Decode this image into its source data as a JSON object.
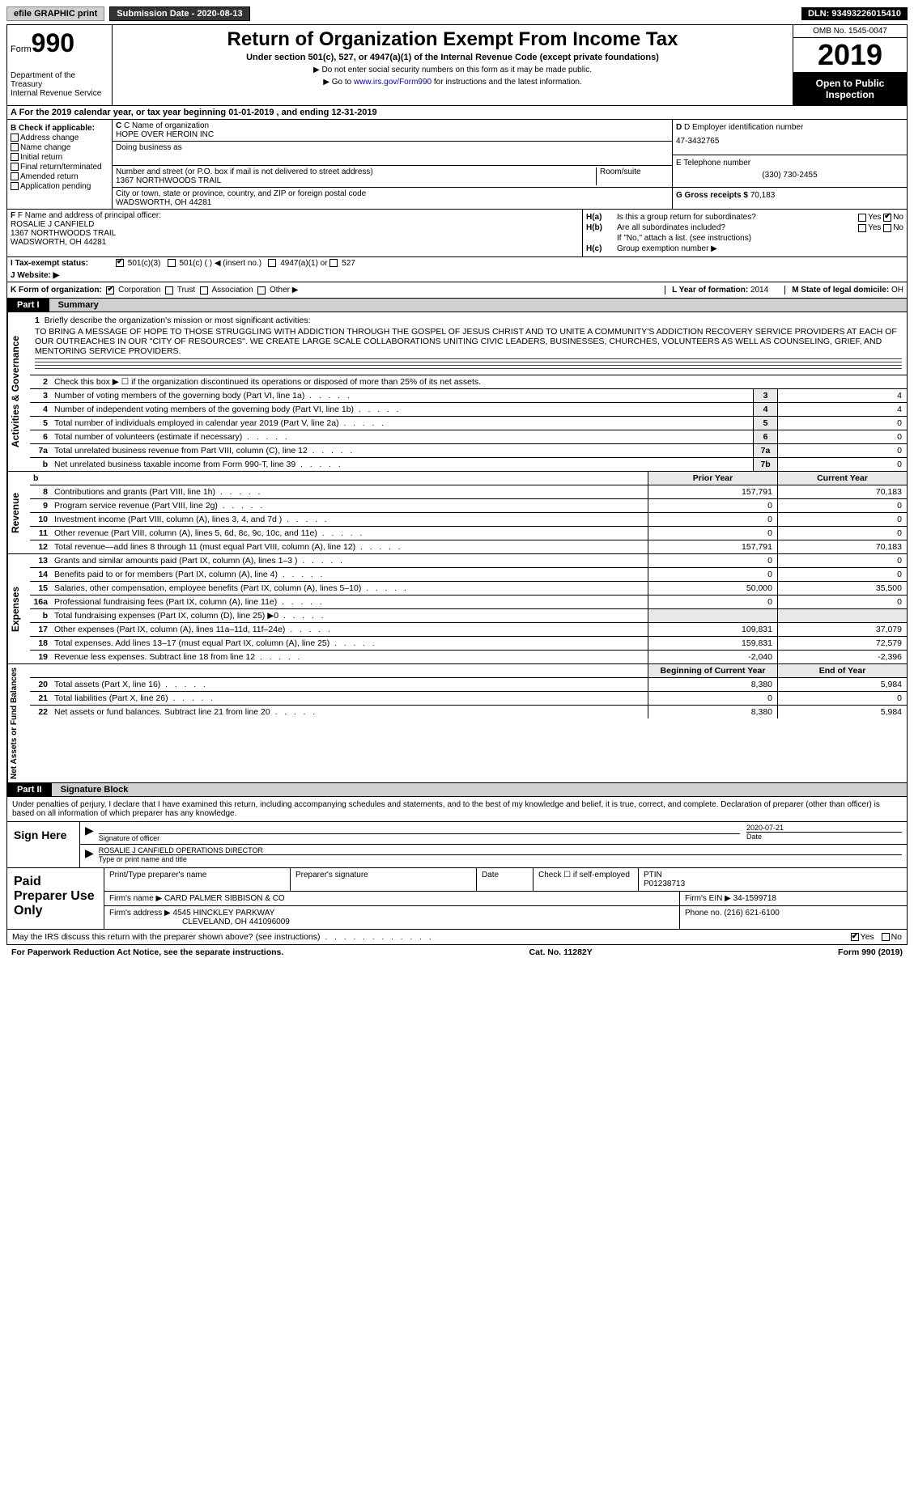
{
  "topbar": {
    "efile": "efile GRAPHIC print",
    "submission": "Submission Date - 2020-08-13",
    "dln": "DLN: 93493226015410"
  },
  "header": {
    "form_prefix": "Form",
    "form_num": "990",
    "dept": "Department of the Treasury\nInternal Revenue Service",
    "title": "Return of Organization Exempt From Income Tax",
    "subtitle": "Under section 501(c), 527, or 4947(a)(1) of the Internal Revenue Code (except private foundations)",
    "note1": "▶ Do not enter social security numbers on this form as it may be made public.",
    "note2_pre": "▶ Go to ",
    "note2_link": "www.irs.gov/Form990",
    "note2_post": " for instructions and the latest information.",
    "omb": "OMB No. 1545-0047",
    "year": "2019",
    "open": "Open to Public Inspection"
  },
  "row_a": "A For the 2019 calendar year, or tax year beginning 01-01-2019   , and ending 12-31-2019",
  "col_b": {
    "title": "B Check if applicable:",
    "items": [
      "Address change",
      "Name change",
      "Initial return",
      "Final return/terminated",
      "Amended return",
      "Application pending"
    ]
  },
  "col_c": {
    "name_lbl": "C Name of organization",
    "name": "HOPE OVER HEROIN INC",
    "dba_lbl": "Doing business as",
    "dba": "",
    "addr_lbl": "Number and street (or P.O. box if mail is not delivered to street address)",
    "room_lbl": "Room/suite",
    "addr": "1367 NORTHWOODS TRAIL",
    "city_lbl": "City or town, state or province, country, and ZIP or foreign postal code",
    "city": "WADSWORTH, OH  44281"
  },
  "col_d": {
    "ein_lbl": "D Employer identification number",
    "ein": "47-3432765",
    "phone_lbl": "E Telephone number",
    "phone": "(330) 730-2455",
    "gross_lbl": "G Gross receipts $",
    "gross": "70,183"
  },
  "col_f": {
    "lbl": "F Name and address of principal officer:",
    "name": "ROSALIE J CANFIELD",
    "addr1": "1367 NORTHWOODS TRAIL",
    "addr2": "WADSWORTH, OH  44281"
  },
  "col_h": {
    "ha_lbl": "H(a)",
    "ha_text": "Is this a group return for subordinates?",
    "hb_lbl": "H(b)",
    "hb_text": "Are all subordinates included?",
    "hb_note": "If \"No,\" attach a list. (see instructions)",
    "hc_lbl": "H(c)",
    "hc_text": "Group exemption number ▶",
    "yes": "Yes",
    "no": "No"
  },
  "row_i": {
    "lbl": "I   Tax-exempt status:",
    "opt1": "501(c)(3)",
    "opt2": "501(c) (  ) ◀ (insert no.)",
    "opt3": "4947(a)(1) or",
    "opt4": "527"
  },
  "row_j": "J   Website: ▶",
  "row_k": {
    "lbl": "K Form of organization:",
    "opts": [
      "Corporation",
      "Trust",
      "Association",
      "Other ▶"
    ],
    "l_lbl": "L Year of formation:",
    "l_val": "2014",
    "m_lbl": "M State of legal domicile:",
    "m_val": "OH"
  },
  "parts": {
    "p1_label": "Part I",
    "p1_title": "Summary",
    "p2_label": "Part II",
    "p2_title": "Signature Block"
  },
  "vtabs": {
    "gov": "Activities & Governance",
    "rev": "Revenue",
    "exp": "Expenses",
    "net": "Net Assets or Fund Balances"
  },
  "mission": {
    "num": "1",
    "lbl": "Briefly describe the organization's mission or most significant activities:",
    "text": "TO BRING A MESSAGE OF HOPE TO THOSE STRUGGLING WITH ADDICTION THROUGH THE GOSPEL OF JESUS CHRIST AND TO UNITE A COMMUNITY'S ADDICTION RECOVERY SERVICE PROVIDERS AT EACH OF OUR OUTREACHES IN OUR \"CITY OF RESOURCES\". WE CREATE LARGE SCALE COLLABORATIONS UNITING CIVIC LEADERS, BUSINESSES, CHURCHES, VOLUNTEERS AS WELL AS COUNSELING, GRIEF, AND MENTORING SERVICE PROVIDERS."
  },
  "gov_lines": [
    {
      "n": "2",
      "d": "Check this box ▶ ☐ if the organization discontinued its operations or disposed of more than 25% of its net assets.",
      "box": "",
      "v": ""
    },
    {
      "n": "3",
      "d": "Number of voting members of the governing body (Part VI, line 1a)",
      "box": "3",
      "v": "4"
    },
    {
      "n": "4",
      "d": "Number of independent voting members of the governing body (Part VI, line 1b)",
      "box": "4",
      "v": "4"
    },
    {
      "n": "5",
      "d": "Total number of individuals employed in calendar year 2019 (Part V, line 2a)",
      "box": "5",
      "v": "0"
    },
    {
      "n": "6",
      "d": "Total number of volunteers (estimate if necessary)",
      "box": "6",
      "v": "0"
    },
    {
      "n": "7a",
      "d": "Total unrelated business revenue from Part VIII, column (C), line 12",
      "box": "7a",
      "v": "0"
    },
    {
      "n": "b",
      "d": "Net unrelated business taxable income from Form 990-T, line 39",
      "box": "7b",
      "v": "0"
    }
  ],
  "year_hdr": {
    "prior": "Prior Year",
    "current": "Current Year"
  },
  "rev_lines": [
    {
      "n": "8",
      "d": "Contributions and grants (Part VIII, line 1h)",
      "p": "157,791",
      "c": "70,183"
    },
    {
      "n": "9",
      "d": "Program service revenue (Part VIII, line 2g)",
      "p": "0",
      "c": "0"
    },
    {
      "n": "10",
      "d": "Investment income (Part VIII, column (A), lines 3, 4, and 7d )",
      "p": "0",
      "c": "0"
    },
    {
      "n": "11",
      "d": "Other revenue (Part VIII, column (A), lines 5, 6d, 8c, 9c, 10c, and 11e)",
      "p": "0",
      "c": "0"
    },
    {
      "n": "12",
      "d": "Total revenue—add lines 8 through 11 (must equal Part VIII, column (A), line 12)",
      "p": "157,791",
      "c": "70,183"
    }
  ],
  "exp_lines": [
    {
      "n": "13",
      "d": "Grants and similar amounts paid (Part IX, column (A), lines 1–3 )",
      "p": "0",
      "c": "0"
    },
    {
      "n": "14",
      "d": "Benefits paid to or for members (Part IX, column (A), line 4)",
      "p": "0",
      "c": "0"
    },
    {
      "n": "15",
      "d": "Salaries, other compensation, employee benefits (Part IX, column (A), lines 5–10)",
      "p": "50,000",
      "c": "35,500"
    },
    {
      "n": "16a",
      "d": "Professional fundraising fees (Part IX, column (A), line 11e)",
      "p": "0",
      "c": "0"
    },
    {
      "n": "b",
      "d": "Total fundraising expenses (Part IX, column (D), line 25) ▶0",
      "p": "",
      "c": ""
    },
    {
      "n": "17",
      "d": "Other expenses (Part IX, column (A), lines 11a–11d, 11f–24e)",
      "p": "109,831",
      "c": "37,079"
    },
    {
      "n": "18",
      "d": "Total expenses. Add lines 13–17 (must equal Part IX, column (A), line 25)",
      "p": "159,831",
      "c": "72,579"
    },
    {
      "n": "19",
      "d": "Revenue less expenses. Subtract line 18 from line 12",
      "p": "-2,040",
      "c": "-2,396"
    }
  ],
  "net_hdr": {
    "beg": "Beginning of Current Year",
    "end": "End of Year"
  },
  "net_lines": [
    {
      "n": "20",
      "d": "Total assets (Part X, line 16)",
      "p": "8,380",
      "c": "5,984"
    },
    {
      "n": "21",
      "d": "Total liabilities (Part X, line 26)",
      "p": "0",
      "c": "0"
    },
    {
      "n": "22",
      "d": "Net assets or fund balances. Subtract line 21 from line 20",
      "p": "8,380",
      "c": "5,984"
    }
  ],
  "sig": {
    "decl": "Under penalties of perjury, I declare that I have examined this return, including accompanying schedules and statements, and to the best of my knowledge and belief, it is true, correct, and complete. Declaration of preparer (other than officer) is based on all information of which preparer has any knowledge.",
    "sign_here": "Sign Here",
    "sig_officer": "Signature of officer",
    "date": "2020-07-21",
    "date_lbl": "Date",
    "name_title": "ROSALIE J CANFIELD  OPERATIONS DIRECTOR",
    "name_title_lbl": "Type or print name and title"
  },
  "prep": {
    "title": "Paid Preparer Use Only",
    "print_lbl": "Print/Type preparer's name",
    "sig_lbl": "Preparer's signature",
    "date_lbl": "Date",
    "check_lbl": "Check ☐ if self-employed",
    "ptin_lbl": "PTIN",
    "ptin": "P01238713",
    "firm_name_lbl": "Firm's name   ▶",
    "firm_name": "CARD PALMER SIBBISON & CO",
    "firm_ein_lbl": "Firm's EIN ▶",
    "firm_ein": "34-1599718",
    "firm_addr_lbl": "Firm's address ▶",
    "firm_addr1": "4545 HINCKLEY PARKWAY",
    "firm_addr2": "CLEVELAND, OH  441096009",
    "phone_lbl": "Phone no.",
    "phone": "(216) 621-6100"
  },
  "footer": {
    "discuss": "May the IRS discuss this return with the preparer shown above? (see instructions)",
    "yes": "Yes",
    "no": "No",
    "paperwork": "For Paperwork Reduction Act Notice, see the separate instructions.",
    "cat": "Cat. No. 11282Y",
    "form": "Form 990 (2019)"
  }
}
